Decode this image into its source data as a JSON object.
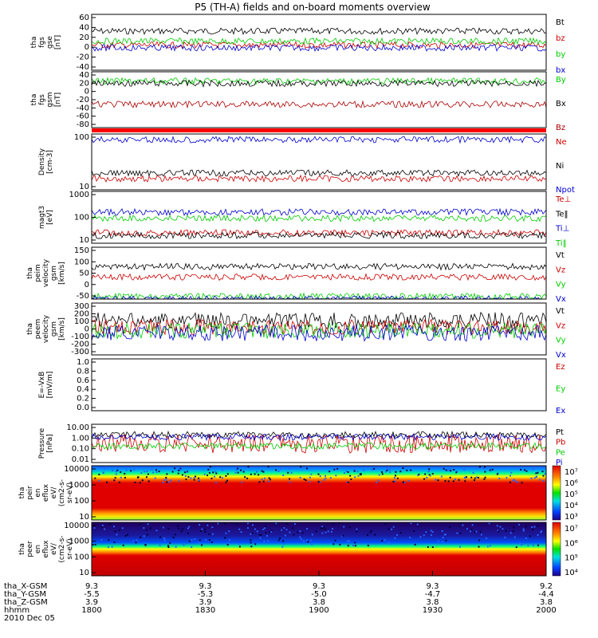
{
  "title": "P5 (TH-A) fields and on-board moments overview",
  "chart_data": {
    "type": "line",
    "panels": [
      {
        "id": "fgs-gse",
        "ylabel": [
          "tha",
          "fgs",
          "gse",
          "[nT]"
        ],
        "yticks": [
          "60",
          "40",
          "20",
          "0",
          "-20",
          "-40"
        ],
        "series": [
          {
            "name": "Bt",
            "color": "#000000",
            "level": 30
          },
          {
            "name": "bz",
            "color": "#cc0000",
            "level": 5
          },
          {
            "name": "by",
            "color": "#00cc00",
            "level": 12
          },
          {
            "name": "bx",
            "color": "#0000cc",
            "level": 0
          }
        ]
      },
      {
        "id": "fgs-gsm",
        "ylabel": [
          "tha",
          "fgs",
          "gsm",
          "[nT]"
        ],
        "yticks": [
          "40",
          "20",
          "0",
          "-20",
          "-40",
          "-60",
          "-80"
        ],
        "series": [
          {
            "name": "By",
            "color": "#00cc00",
            "level": 20
          },
          {
            "name": "Bx",
            "color": "#000000",
            "level": 15
          },
          {
            "name": "Bz",
            "color": "#aa0000",
            "level": -30
          }
        ]
      },
      {
        "id": "density",
        "ylabel": [
          "Density",
          "[cm-3]"
        ],
        "yticks": [
          "100",
          "10"
        ],
        "series": [
          {
            "name": "Ne",
            "color": "#cc0000",
            "level": 0.2
          },
          {
            "name": "Ni",
            "color": "#000000",
            "level": 0.3
          },
          {
            "name": "Npot",
            "color": "#0000cc",
            "level": 0.9
          }
        ]
      },
      {
        "id": "temperature",
        "ylabel": [
          "magt3",
          "[eV]"
        ],
        "yticks": [
          "1000",
          "100",
          "10"
        ],
        "series": [
          {
            "name": "Te⊥",
            "color": "#cc0000",
            "level": 0.2
          },
          {
            "name": "Te‖",
            "color": "#000000",
            "level": 0.15
          },
          {
            "name": "Ti⊥",
            "color": "#0000cc",
            "level": 0.6
          },
          {
            "name": "Ti‖",
            "color": "#00cc00",
            "level": 0.48
          }
        ]
      },
      {
        "id": "peim-velocity",
        "ylabel": [
          "tha",
          "peim",
          "velocity",
          "gsm",
          "[km/s]"
        ],
        "yticks": [
          "150",
          "100",
          "50",
          "0",
          "-50"
        ],
        "series": [
          {
            "name": "Vt",
            "color": "#000000",
            "level": 75
          },
          {
            "name": "Vz",
            "color": "#cc0000",
            "level": 35
          },
          {
            "name": "Vy",
            "color": "#00cc00",
            "level": -40
          },
          {
            "name": "Vx",
            "color": "#0000cc",
            "level": -50
          }
        ]
      },
      {
        "id": "peem-velocity",
        "ylabel": [
          "tha",
          "peem",
          "velocity",
          "gsm",
          "[km/s]"
        ],
        "yticks": [
          "300",
          "200",
          "100",
          "0",
          "-100",
          "-200",
          "-300"
        ],
        "series": [
          {
            "name": "Vt",
            "color": "#000000",
            "level": 100
          },
          {
            "name": "Vz",
            "color": "#cc0000",
            "level": 20
          },
          {
            "name": "Vy",
            "color": "#00cc00",
            "level": -20
          },
          {
            "name": "Vx",
            "color": "#0000cc",
            "level": -50
          }
        ]
      },
      {
        "id": "efield",
        "ylabel": [
          "E=-VxB",
          "[mV/m]"
        ],
        "yticks": [
          "1.0",
          "0.8",
          "0.6",
          "0.4",
          "0.2",
          "0.0"
        ],
        "series": [
          {
            "name": "Ez",
            "color": "#cc0000",
            "level": null
          },
          {
            "name": "Ey",
            "color": "#00cc00",
            "level": null
          },
          {
            "name": "Ex",
            "color": "#0000cc",
            "level": null
          }
        ]
      },
      {
        "id": "pressure",
        "ylabel": [
          "Pressure",
          "[nPa]"
        ],
        "yticks": [
          "10.00",
          "1.00",
          "0.10",
          "0.01"
        ],
        "series": [
          {
            "name": "Pt",
            "color": "#000000",
            "level": 1.5
          },
          {
            "name": "Pb",
            "color": "#cc0000",
            "level": 0.3
          },
          {
            "name": "Pe",
            "color": "#00cc00",
            "level": 0.2
          },
          {
            "name": "Pi",
            "color": "#0000cc",
            "level": 1.0
          }
        ]
      },
      {
        "id": "peir-spectrogram",
        "ylabel": [
          "tha",
          "peir",
          "en",
          "eflux",
          "eV/",
          "(cm2-s-",
          "sr-eV)"
        ],
        "yticks": [
          "10000",
          "1000",
          "100",
          "10"
        ],
        "colorbar": [
          "10⁷",
          "10⁶",
          "10⁵",
          "10⁴",
          "10³"
        ]
      },
      {
        "id": "peer-spectrogram",
        "ylabel": [
          "tha",
          "peer",
          "en",
          "eflux",
          "eV/",
          "(cm2-s-",
          "sr-eV)"
        ],
        "yticks": [
          "10000",
          "1000",
          "100",
          "10"
        ],
        "colorbar": [
          "10⁷",
          "10⁶",
          "10⁵",
          "10⁴"
        ]
      }
    ],
    "x_axis": {
      "ticks": [
        {
          "time": "1800",
          "x": "9.3",
          "y": "-5.5",
          "z": "3.9"
        },
        {
          "time": "1830",
          "x": "9.3",
          "y": "-5.3",
          "z": "3.9"
        },
        {
          "time": "1900",
          "x": "9.3",
          "y": "-5.0",
          "z": "3.8"
        },
        {
          "time": "1930",
          "x": "9.3",
          "y": "-4.7",
          "z": "3.8"
        },
        {
          "time": "2000",
          "x": "9.2",
          "y": "-4.4",
          "z": "3.8"
        }
      ],
      "row_labels": [
        "tha_X-GSM",
        "tha_Y-GSM",
        "tha_Z-GSM",
        "hhmm"
      ],
      "date": "2010 Dec 05"
    }
  }
}
